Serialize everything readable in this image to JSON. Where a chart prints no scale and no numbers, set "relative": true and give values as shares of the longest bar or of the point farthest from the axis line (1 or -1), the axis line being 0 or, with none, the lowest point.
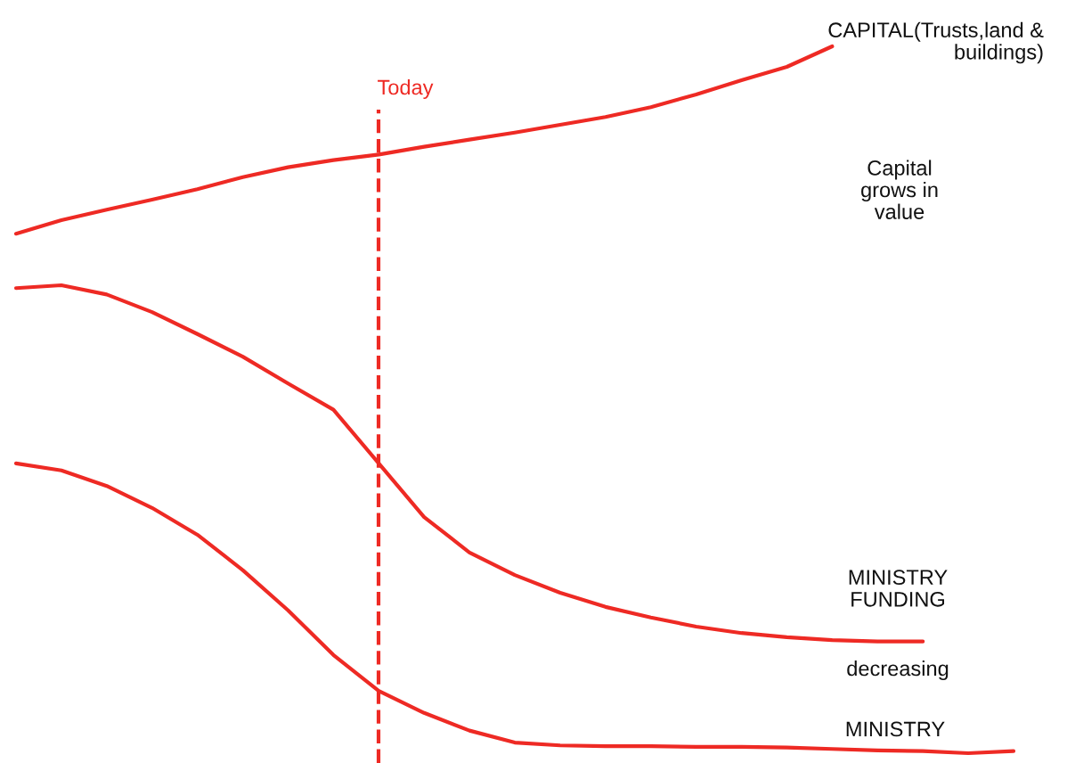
{
  "chart_data": {
    "type": "line",
    "relative": true,
    "categories": [
      null,
      null,
      null,
      null,
      null,
      null,
      null,
      null,
      null,
      null,
      null,
      null,
      null,
      null,
      null,
      null,
      null,
      null,
      null,
      null,
      null,
      null,
      null
    ],
    "series": [
      {
        "color": "#ee2a24",
        "values": [
          0.735,
          0.754,
          0.769,
          0.783,
          0.798,
          0.815,
          0.829,
          0.839,
          0.847,
          0.858,
          0.868,
          0.878,
          0.889,
          0.9,
          0.914,
          0.932,
          0.952,
          0.971,
          1.0,
          null,
          null,
          null,
          null
        ]
      },
      {
        "color": "#ee2a24",
        "values": [
          0.658,
          0.662,
          0.649,
          0.624,
          0.593,
          0.561,
          0.523,
          0.486,
          0.41,
          0.334,
          0.284,
          0.252,
          0.227,
          0.207,
          0.192,
          0.179,
          0.17,
          0.164,
          0.16,
          0.158,
          0.158,
          null,
          null
        ]
      },
      {
        "color": "#ee2a24",
        "values": [
          0.41,
          0.4,
          0.378,
          0.347,
          0.309,
          0.259,
          0.202,
          0.139,
          0.088,
          0.057,
          0.032,
          0.015,
          0.011,
          0.01,
          0.01,
          0.009,
          0.009,
          0.008,
          0.006,
          0.004,
          0.003,
          0,
          0.003
        ]
      }
    ],
    "annotations": [
      "CAPITAL(Trusts,land &\nbuildings)",
      "Capital\ngrows in\nvalue",
      "MINISTRY\nFUNDING",
      "decreasing",
      "MINISTRY",
      "Today"
    ],
    "marker": "none",
    "line_style": "solid"
  }
}
